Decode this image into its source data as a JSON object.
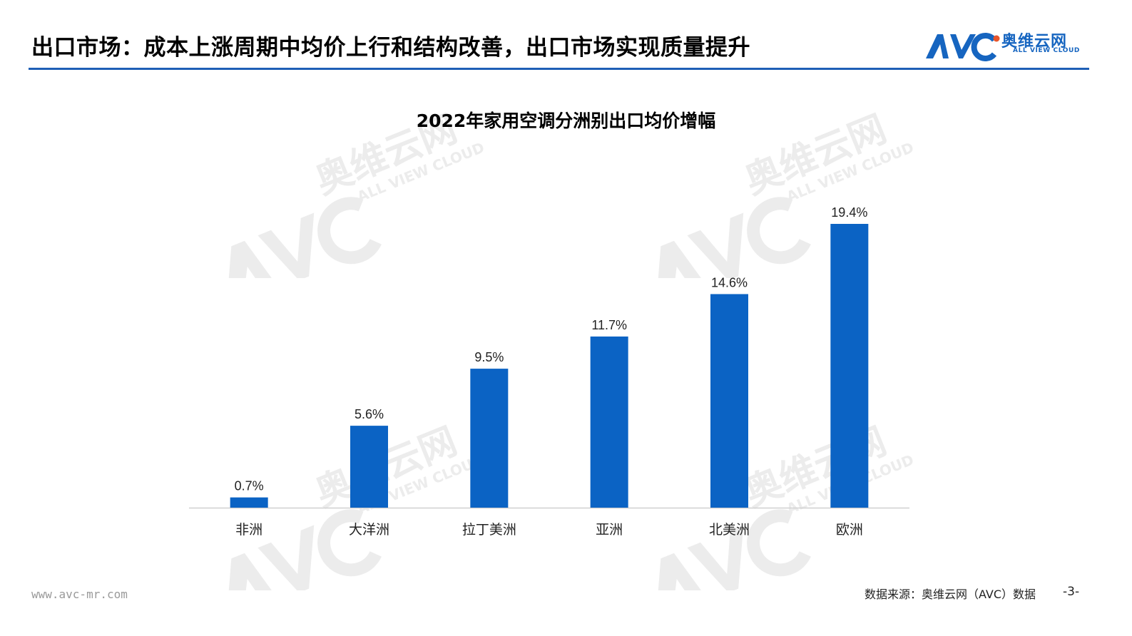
{
  "header": {
    "title": "出口市场：成本上涨周期中均价上行和结构改善，出口市场实现质量提升"
  },
  "logo": {
    "mark": "AVC",
    "brand": "奥维云网",
    "tagline": "ALL VIEW CLOUD"
  },
  "watermark": {
    "mark": "AVC",
    "brand": "奥维云网",
    "tagline": "ALL VIEW CLOUD"
  },
  "chart_data": {
    "type": "bar",
    "title": "2022年家用空调分洲别出口均价增幅",
    "categories": [
      "非洲",
      "大洋洲",
      "拉丁美洲",
      "亚洲",
      "北美洲",
      "欧洲"
    ],
    "values": [
      0.7,
      5.6,
      9.5,
      11.7,
      14.6,
      19.4
    ],
    "value_labels": [
      "0.7%",
      "5.6%",
      "9.5%",
      "11.7%",
      "14.6%",
      "19.4%"
    ],
    "unit": "%",
    "ylim": [
      0,
      19.4
    ],
    "grid": false,
    "legend": "none",
    "bar_color": "#0b63c4"
  },
  "footer": {
    "url": "www.avc-mr.com",
    "source": "数据来源：奥维云网（AVC）数据",
    "page": "-3-"
  },
  "colors": {
    "accent": "#1f5fb6",
    "bar": "#0b63c4",
    "axis": "#d0d0d0",
    "watermark": "#ececec"
  }
}
